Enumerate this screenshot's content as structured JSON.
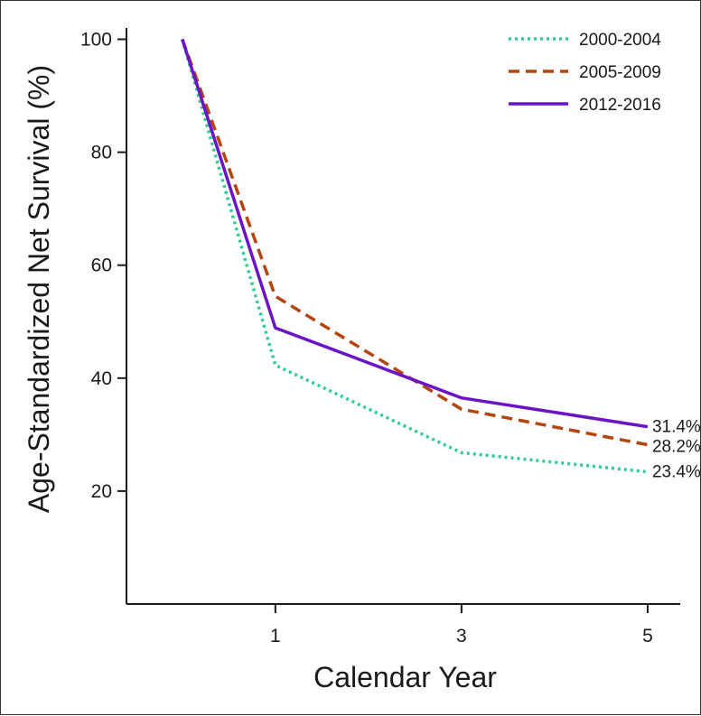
{
  "chart_data": {
    "type": "line",
    "title": "",
    "xlabel": "Calendar Year",
    "ylabel": "Age-Standardized Net Survival (%)",
    "x": [
      0,
      1,
      3,
      5
    ],
    "xticks": [
      1,
      3,
      5
    ],
    "xtick_labels": [
      "1",
      "3",
      "5"
    ],
    "yticks": [
      20,
      40,
      60,
      80,
      100
    ],
    "ytick_labels": [
      "20",
      "40",
      "60",
      "80",
      "100"
    ],
    "xlim": [
      -0.6,
      5.35
    ],
    "ylim": [
      0,
      102
    ],
    "grid": false,
    "legend_position": "top-right",
    "series": [
      {
        "name": "2000-2004",
        "values": [
          100,
          42.3,
          26.8,
          23.4
        ],
        "end_label": "23.4%",
        "color": "#2ecc8f",
        "style": "dotted"
      },
      {
        "name": "2005-2009",
        "values": [
          100,
          54.5,
          34.5,
          28.2
        ],
        "end_label": "28.2%",
        "color": "#b5440f",
        "style": "dashed"
      },
      {
        "name": "2012-2016",
        "values": [
          100,
          48.9,
          36.5,
          31.4
        ],
        "end_label": "31.4%",
        "color": "#6a14c8",
        "style": "solid"
      }
    ]
  }
}
